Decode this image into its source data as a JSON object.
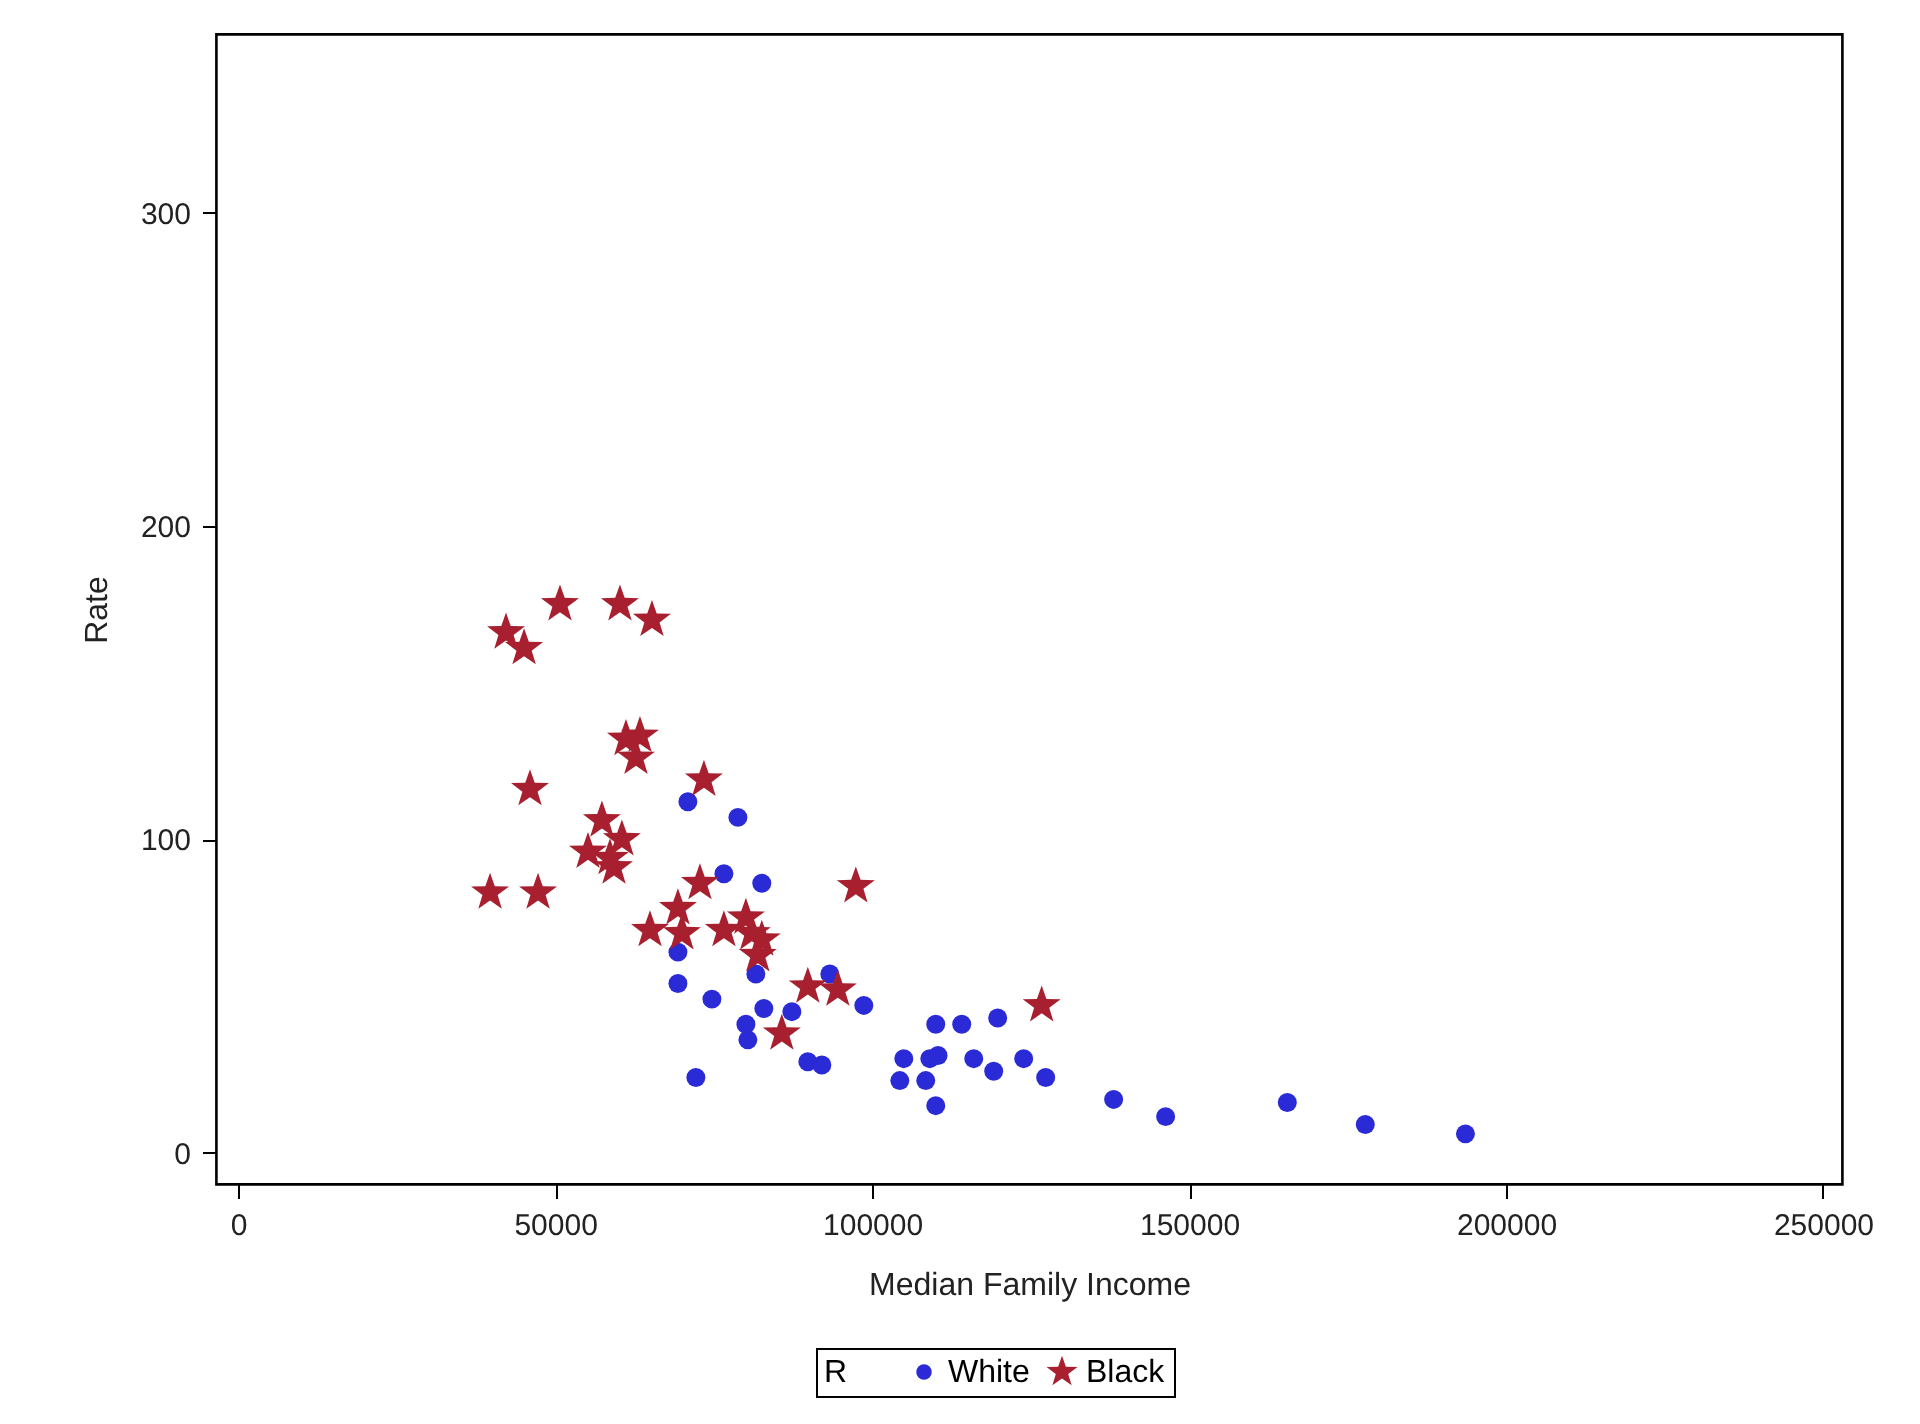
{
  "chart_data": {
    "type": "scatter",
    "xlabel": "Median Family Income",
    "ylabel": "Rate",
    "legend_title": "R",
    "xlim": [
      -3500,
      253000
    ],
    "ylim": [
      -10,
      357
    ],
    "xticks": [
      0,
      50000,
      100000,
      150000,
      200000,
      250000
    ],
    "yticks": [
      0,
      100,
      200,
      300
    ],
    "grid": false,
    "legend": "bottom",
    "series": [
      {
        "name": "White",
        "color": "#2a2ad6",
        "marker": "circle",
        "x": [
          70940,
          78830,
          76620,
          82600,
          69370,
          69370,
          81660,
          74730,
          82920,
          93330,
          87340,
          80090,
          80400,
          98690,
          89860,
          92070,
          72200,
          110040,
          114140,
          119810,
          105000,
          109100,
          110400,
          116030,
          119180,
          123910,
          104370,
          108460,
          110040,
          127380,
          138100,
          146300,
          165500,
          177800,
          193600
        ],
        "values": [
          112,
          107,
          89,
          86,
          64,
          54,
          57,
          49,
          46,
          57,
          45,
          41,
          36,
          47,
          29,
          28,
          24,
          41,
          41,
          43,
          30,
          30,
          31,
          30,
          26,
          30,
          23,
          23,
          15,
          24,
          17,
          11.5,
          16,
          9,
          6
        ]
      },
      {
        "name": "Black",
        "color": "#a8202f",
        "marker": "star",
        "x": [
          42250,
          45100,
          50760,
          60220,
          65270,
          61170,
          63380,
          62750,
          73470,
          46030,
          57380,
          60530,
          55180,
          58650,
          59280,
          39730,
          47300,
          72840,
          97430,
          69370,
          64960,
          70000,
          76620,
          80090,
          81030,
          82600,
          81970,
          89860,
          94590,
          85760,
          126750
        ],
        "values": [
          166,
          161,
          175,
          175,
          170,
          132,
          133,
          126,
          119,
          116,
          106,
          100,
          96,
          94,
          91,
          83,
          83,
          86,
          85,
          78,
          71,
          70,
          71,
          75,
          70,
          68,
          63,
          53,
          52,
          38,
          47
        ]
      }
    ]
  }
}
